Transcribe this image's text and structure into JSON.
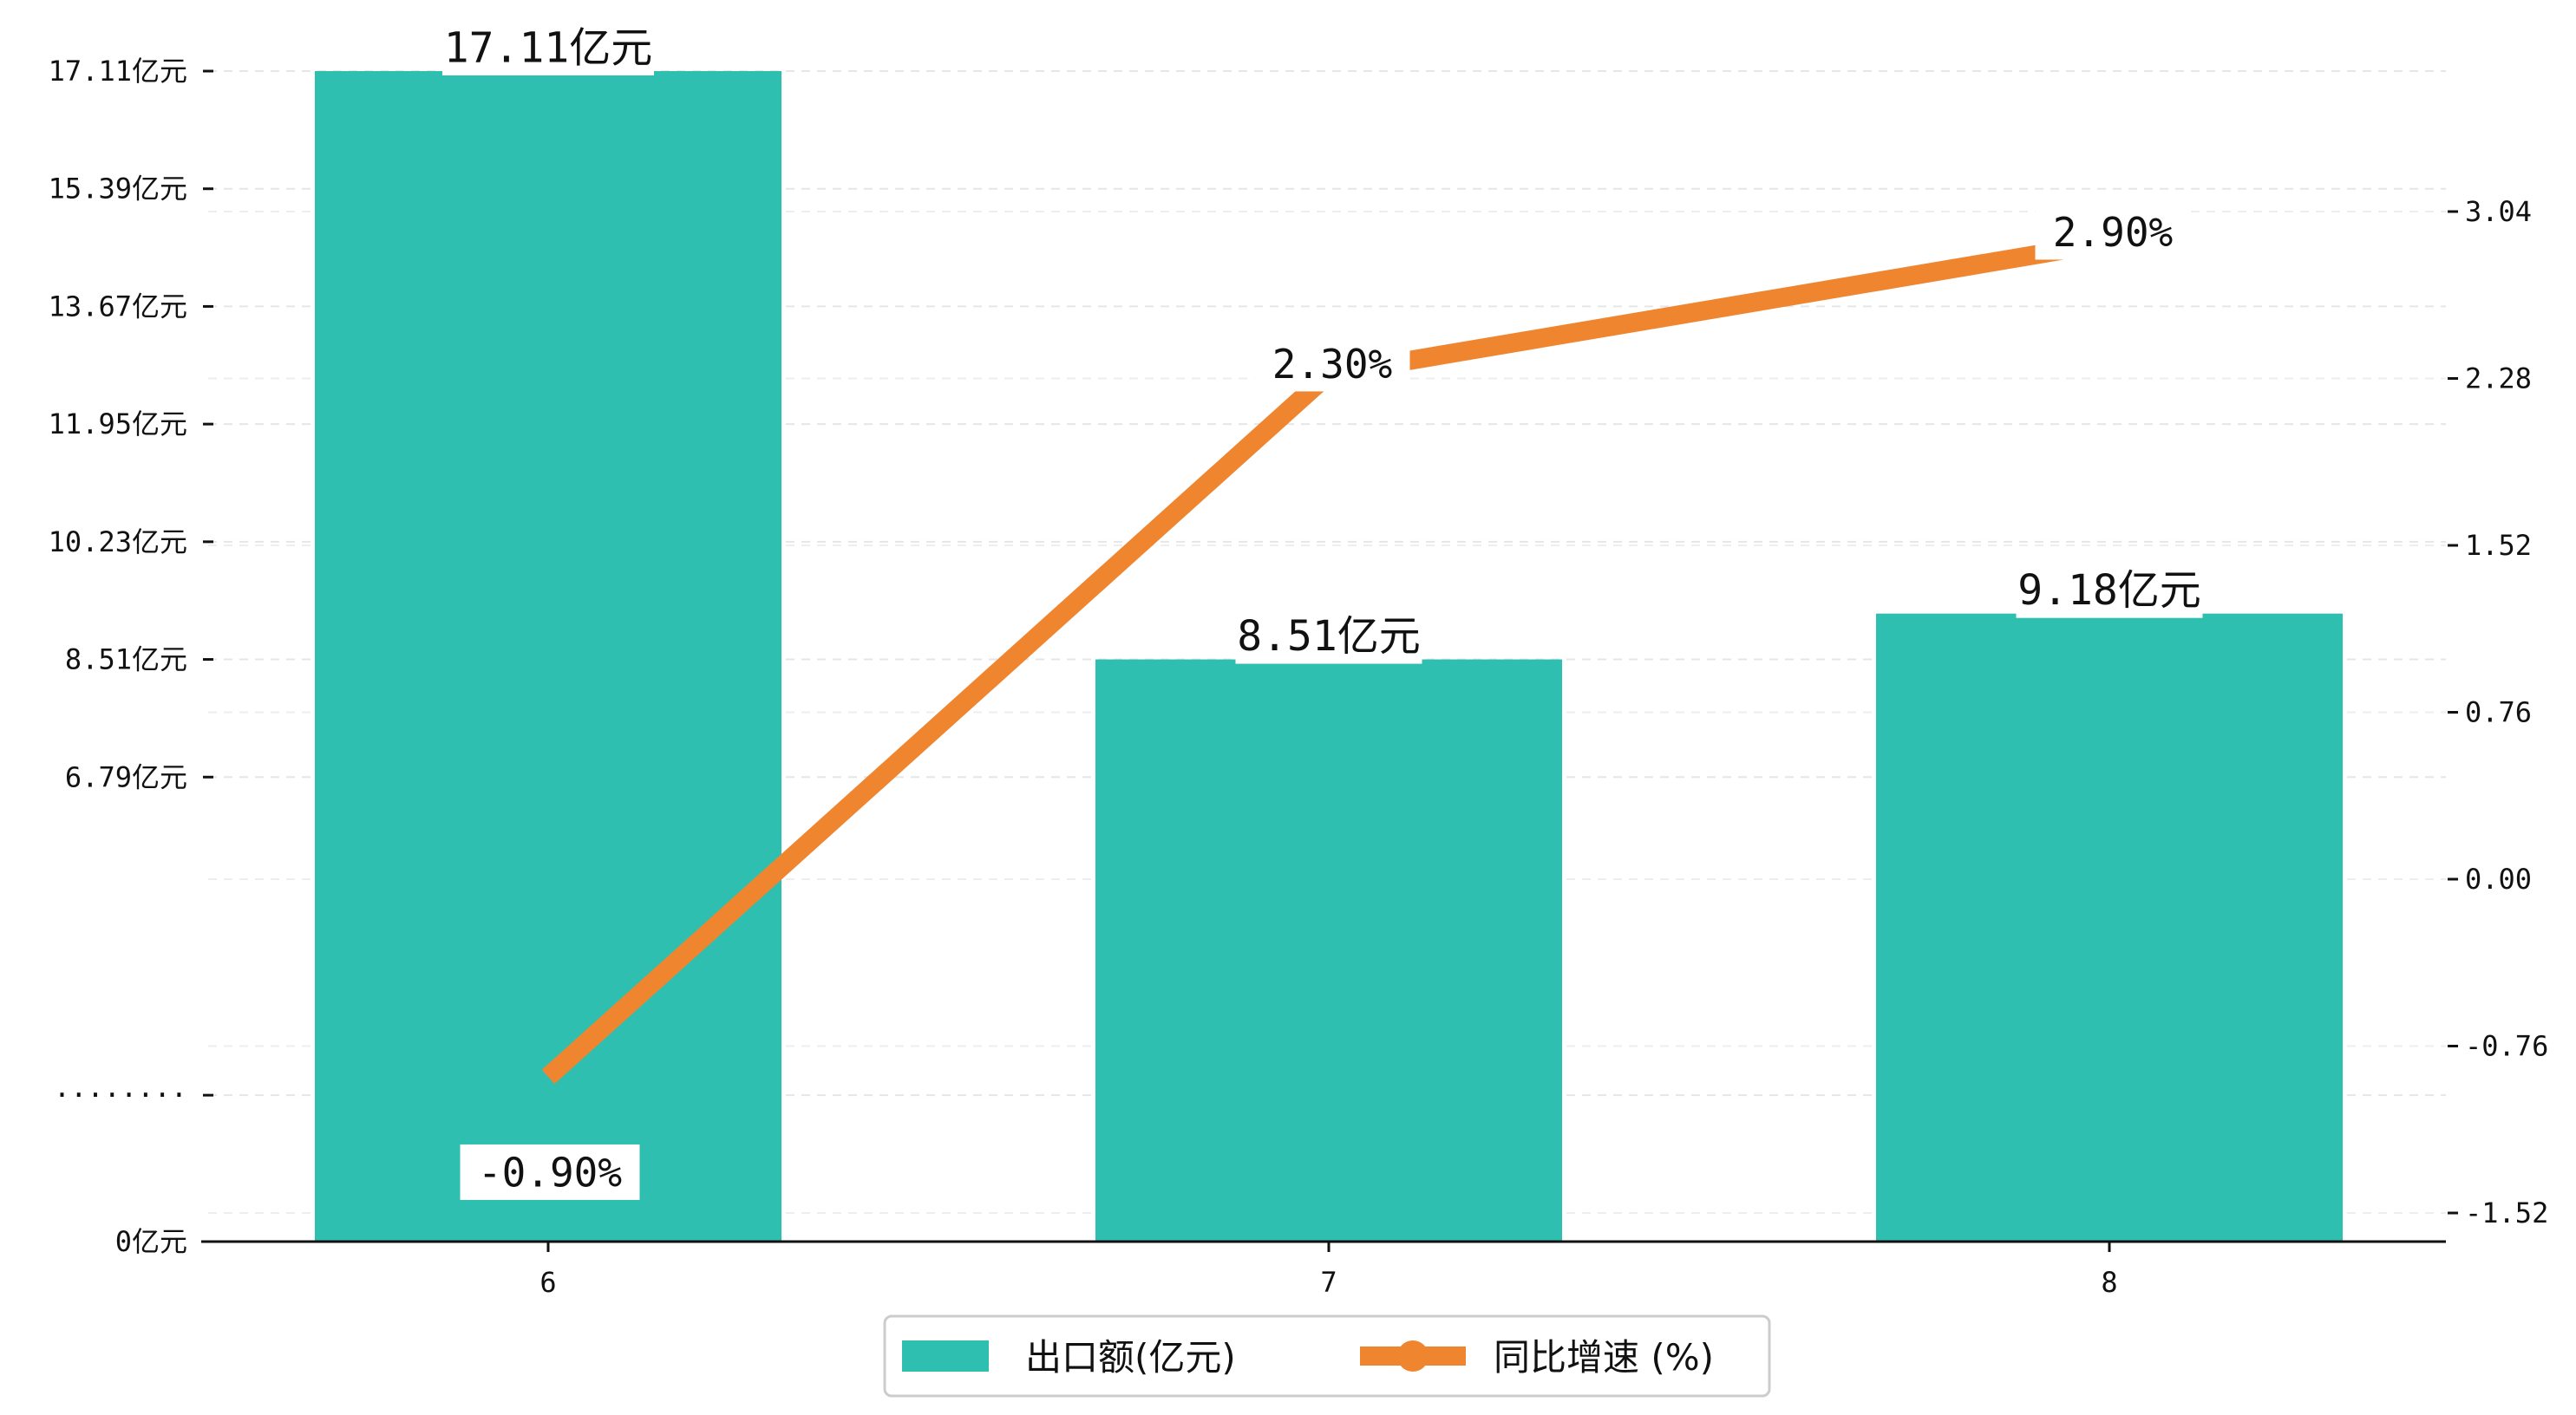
{
  "chart_data": {
    "type": "bar",
    "categories": [
      "6",
      "7",
      "8"
    ],
    "series": [
      {
        "name": "出口额(亿元)",
        "type": "bar",
        "axis": "left",
        "values": [
          17.11,
          8.51,
          9.18
        ],
        "labels": [
          "17.11亿元",
          "8.51亿元",
          "9.18亿元"
        ],
        "color": "#2ebfb0"
      },
      {
        "name": "同比增速 (%)",
        "type": "line",
        "axis": "right",
        "values": [
          -0.9,
          2.3,
          2.9
        ],
        "labels": [
          "-0.90%",
          "2.30%",
          "2.90%"
        ],
        "color": "#f08530"
      }
    ],
    "y_left": {
      "ylim": [
        0,
        17.11
      ],
      "ticks": [
        {
          "value": 0,
          "label": "0亿元"
        },
        {
          "value": 2.14,
          "label": "········"
        },
        {
          "value": 6.79,
          "label": "6.79亿元"
        },
        {
          "value": 8.51,
          "label": "8.51亿元"
        },
        {
          "value": 10.23,
          "label": "10.23亿元"
        },
        {
          "value": 11.95,
          "label": "11.95亿元"
        },
        {
          "value": 13.67,
          "label": "13.67亿元"
        },
        {
          "value": 15.39,
          "label": "15.39亿元"
        },
        {
          "value": 17.11,
          "label": "17.11亿元"
        }
      ]
    },
    "y_right": {
      "ylim": [
        -1.52,
        3.04
      ],
      "ticks": [
        {
          "value": -1.52,
          "label": "-1.52"
        },
        {
          "value": -0.76,
          "label": "-0.76"
        },
        {
          "value": 0.0,
          "label": "0.00"
        },
        {
          "value": 0.76,
          "label": "0.76"
        },
        {
          "value": 1.52,
          "label": "1.52"
        },
        {
          "value": 2.28,
          "label": "2.28"
        },
        {
          "value": 3.04,
          "label": "3.04"
        }
      ]
    },
    "grid": true,
    "legend": "bottom-center"
  }
}
